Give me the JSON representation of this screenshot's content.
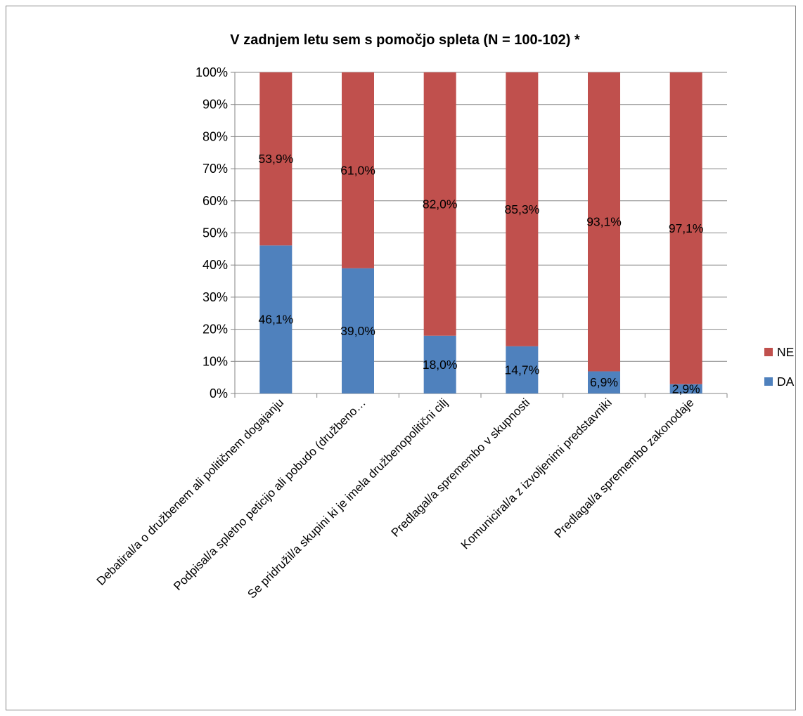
{
  "chart_data": {
    "type": "bar",
    "stacked": true,
    "title": "V zadnjem letu sem s pomočjo spleta (N = 100-102) *",
    "categories": [
      "Debatiral/a o družbenem ali političnem dogajanju",
      "Podpisal/a spletno peticijo ali pobudo (družbeno…",
      "Se pridružil/a skupini ki je imela družbenopolitični cilj",
      "Predlagal/a spremembo v skupnosti",
      "Komuniciral/a z izvoljenimi predstavniki",
      "Predlagal/a spremembo zakonodaje"
    ],
    "series": [
      {
        "name": "DA",
        "color": "#4F81BD",
        "values": [
          46.1,
          39.0,
          18.0,
          14.7,
          6.9,
          2.9
        ],
        "labels": [
          "46,1%",
          "39,0%",
          "18,0%",
          "14,7%",
          "6,9%",
          "2,9%"
        ]
      },
      {
        "name": "NE",
        "color": "#C0504D",
        "values": [
          53.9,
          61.0,
          82.0,
          85.3,
          93.1,
          97.1
        ],
        "labels": [
          "53,9%",
          "61,0%",
          "82,0%",
          "85,3%",
          "93,1%",
          "97,1%"
        ]
      }
    ],
    "ylim": [
      0,
      100
    ],
    "yticks": [
      "0%",
      "10%",
      "20%",
      "30%",
      "40%",
      "50%",
      "60%",
      "70%",
      "80%",
      "90%",
      "100%"
    ],
    "grid": true,
    "legend_position": "right",
    "legend_order": [
      "NE",
      "DA"
    ]
  }
}
